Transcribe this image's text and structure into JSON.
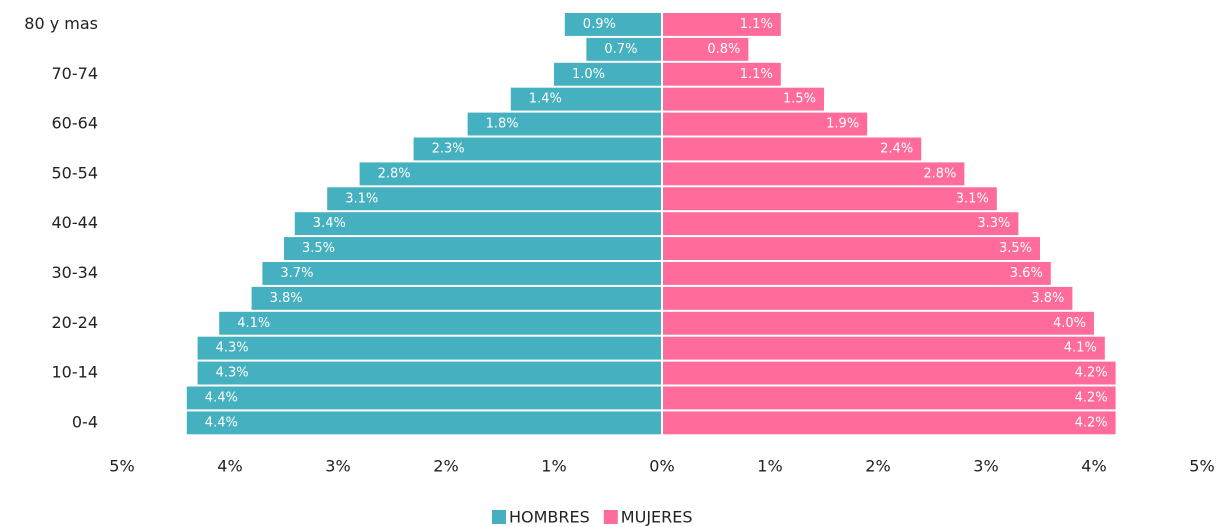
{
  "chart_data": {
    "type": "pyramid",
    "categories": [
      "80 y mas",
      null,
      "70-74",
      null,
      "60-64",
      null,
      "50-54",
      null,
      "40-44",
      null,
      "30-34",
      null,
      "20-24",
      null,
      "10-14",
      null,
      "0-4"
    ],
    "series": [
      {
        "name": "HOMBRES",
        "color": "#45b0bf",
        "side": "left",
        "values": [
          0.9,
          0.7,
          1.0,
          1.4,
          1.8,
          2.3,
          2.8,
          3.1,
          3.4,
          3.5,
          3.7,
          3.8,
          4.1,
          4.3,
          4.3,
          4.4,
          4.4
        ],
        "value_labels": [
          "0.9%",
          "0.7%",
          "1.0%",
          "1.4%",
          "1.8%",
          "2.3%",
          "2.8%",
          "3.1%",
          "3.4%",
          "3.5%",
          "3.7%",
          "3.8%",
          "4.1%",
          "4.3%",
          "4.3%",
          "4.4%",
          "4.4%"
        ]
      },
      {
        "name": "MUJERES",
        "color": "#ff6b9a",
        "side": "right",
        "values": [
          1.1,
          0.8,
          1.1,
          1.5,
          1.9,
          2.4,
          2.8,
          3.1,
          3.3,
          3.5,
          3.6,
          3.8,
          4.0,
          4.1,
          4.2,
          4.2,
          4.2
        ],
        "value_labels": [
          "1.1%",
          "0.8%",
          "1.1%",
          "1.5%",
          "1.9%",
          "2.4%",
          "2.8%",
          "3.1%",
          "3.3%",
          "3.5%",
          "3.6%",
          "3.8%",
          "4.0%",
          "4.1%",
          "4.2%",
          "4.2%",
          "4.2%"
        ]
      }
    ],
    "xlim": [
      -5,
      5
    ],
    "xticks": [
      {
        "value": -5,
        "label": "5%"
      },
      {
        "value": -4,
        "label": "4%"
      },
      {
        "value": -3,
        "label": "3%"
      },
      {
        "value": -2,
        "label": "2%"
      },
      {
        "value": -1,
        "label": "1%"
      },
      {
        "value": 0,
        "label": "0%"
      },
      {
        "value": 1,
        "label": "1%"
      },
      {
        "value": 2,
        "label": "2%"
      },
      {
        "value": 3,
        "label": "3%"
      },
      {
        "value": 4,
        "label": "4%"
      },
      {
        "value": 5,
        "label": "5%"
      }
    ],
    "legend": "bottom"
  }
}
